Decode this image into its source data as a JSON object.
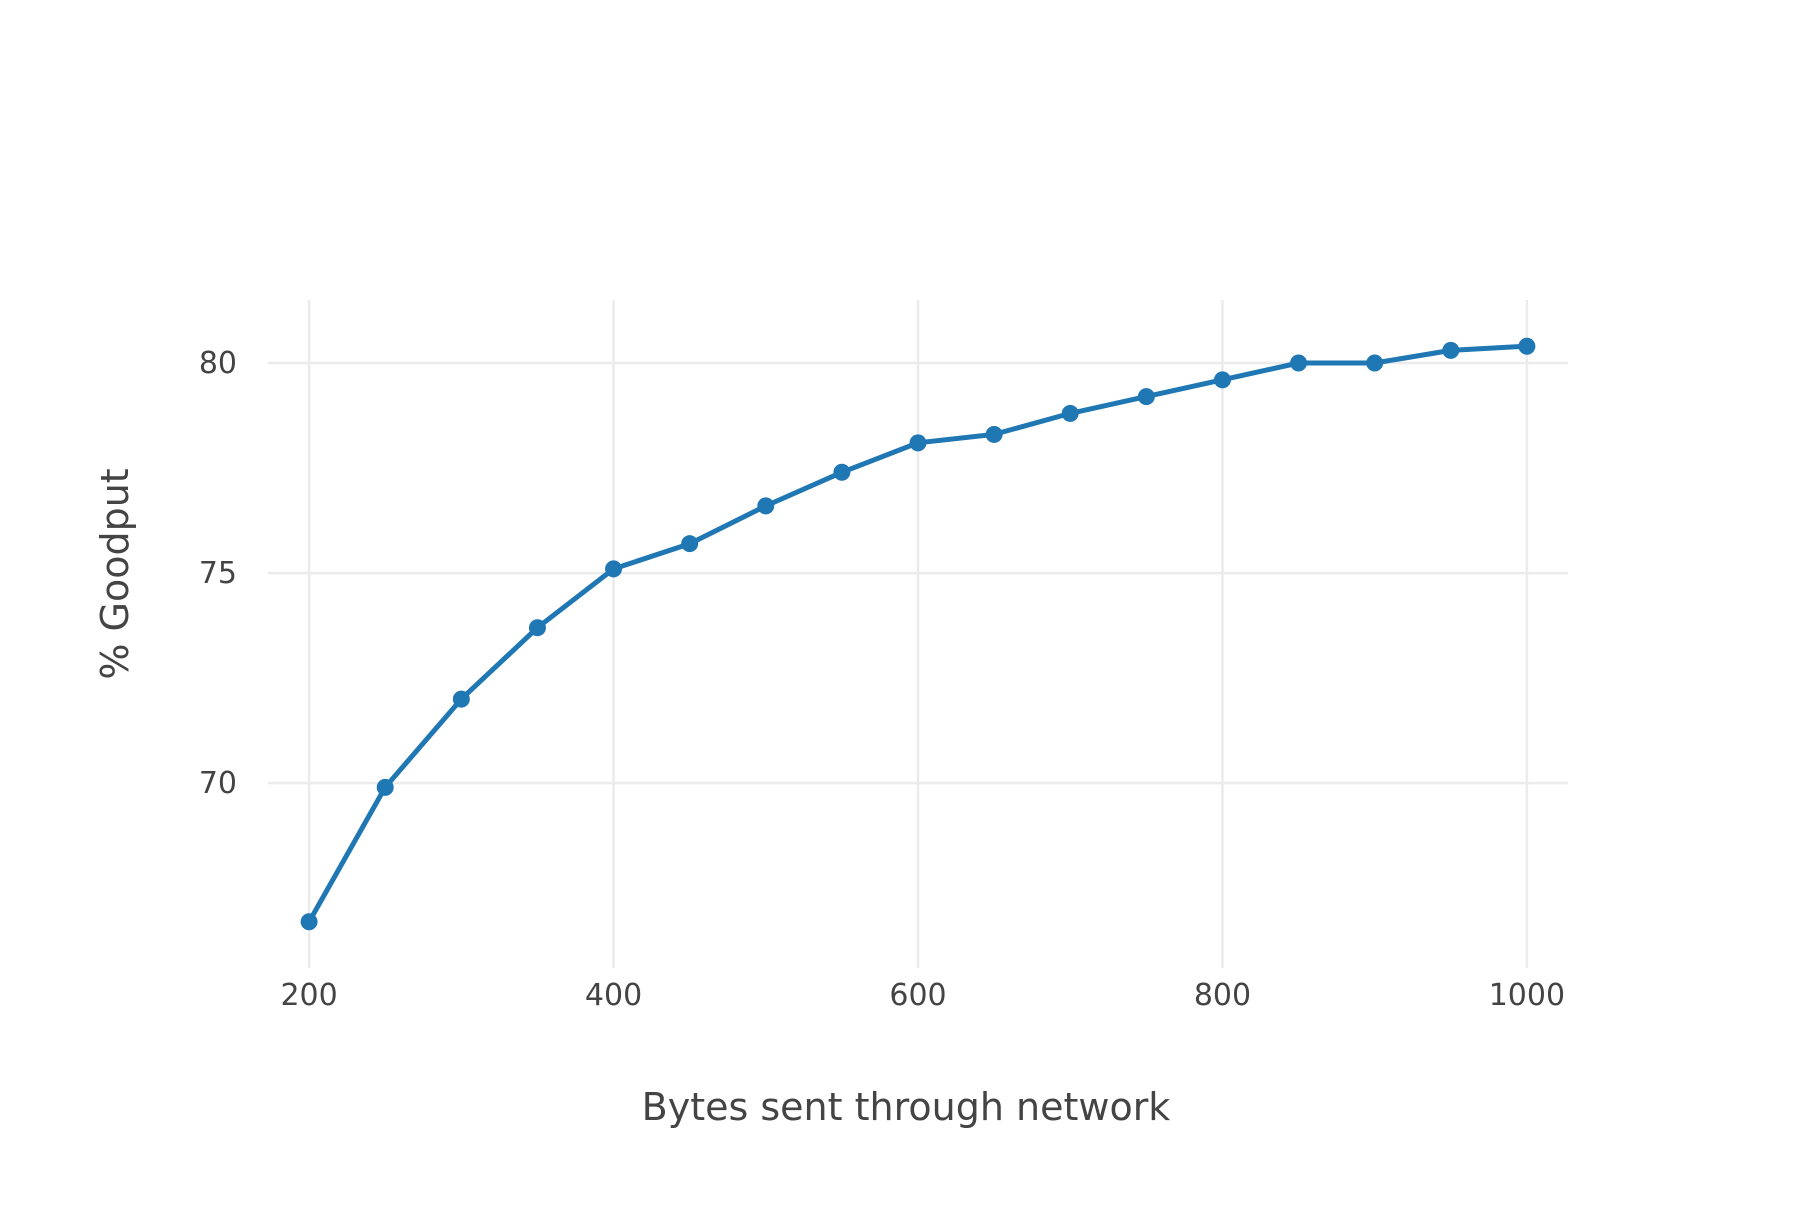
{
  "chart_data": {
    "type": "line",
    "title": "",
    "xlabel": "Bytes sent through network",
    "ylabel": "% Goodput",
    "xlim": [
      173,
      1027
    ],
    "ylim": [
      65.6,
      81.5
    ],
    "x_ticks": [
      200,
      400,
      600,
      800,
      1000
    ],
    "x_tick_labels": [
      "200",
      "400",
      "600",
      "800",
      "1000"
    ],
    "y_ticks": [
      70,
      75,
      80
    ],
    "y_tick_labels": [
      "70",
      "75",
      "80"
    ],
    "grid": true,
    "legend": "none",
    "series": [
      {
        "color": "#1f77b4",
        "x": [
          200,
          250,
          300,
          350,
          400,
          450,
          500,
          550,
          600,
          650,
          700,
          750,
          800,
          850,
          900,
          950,
          1000
        ],
        "y": [
          66.7,
          69.9,
          72.0,
          73.7,
          75.1,
          75.7,
          76.6,
          77.4,
          78.1,
          78.3,
          78.8,
          79.2,
          79.6,
          80.0,
          80.0,
          80.3,
          80.4
        ]
      }
    ]
  }
}
